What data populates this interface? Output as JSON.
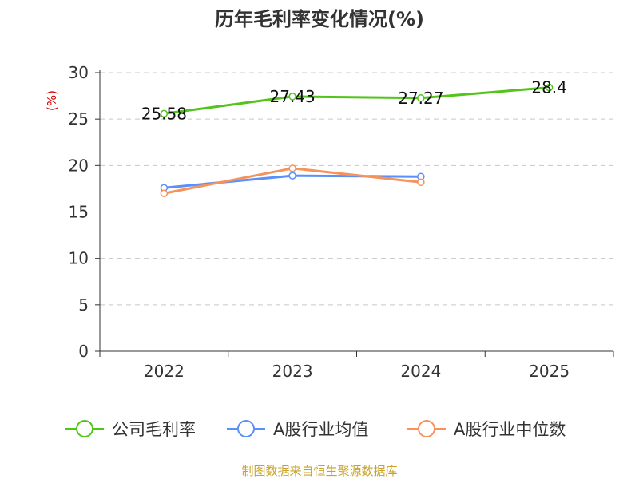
{
  "chart_data": {
    "type": "line",
    "title": "历年毛利率变化情况(%)",
    "ylabel": "(%)",
    "xlabel": "",
    "categories": [
      "2022",
      "2023",
      "2024",
      "2025"
    ],
    "ylim": [
      0,
      30
    ],
    "yticks": [
      0,
      5,
      10,
      15,
      20,
      25,
      30
    ],
    "grid": true,
    "legend_position": "bottom",
    "series": [
      {
        "name": "公司毛利率",
        "color": "#52c41a",
        "values": [
          25.58,
          27.43,
          27.27,
          28.4
        ],
        "labels": [
          "25.58",
          "27.43",
          "27.27",
          "28.4"
        ],
        "show_labels": true
      },
      {
        "name": "A股行业均值",
        "color": "#5b8ff9",
        "values": [
          17.6,
          18.9,
          18.8,
          null
        ],
        "show_labels": false
      },
      {
        "name": "A股行业中位数",
        "color": "#f6925b",
        "values": [
          17.0,
          19.7,
          18.2,
          null
        ],
        "show_labels": false
      }
    ]
  },
  "footer": {
    "source": "制图数据来自恒生聚源数据库"
  }
}
